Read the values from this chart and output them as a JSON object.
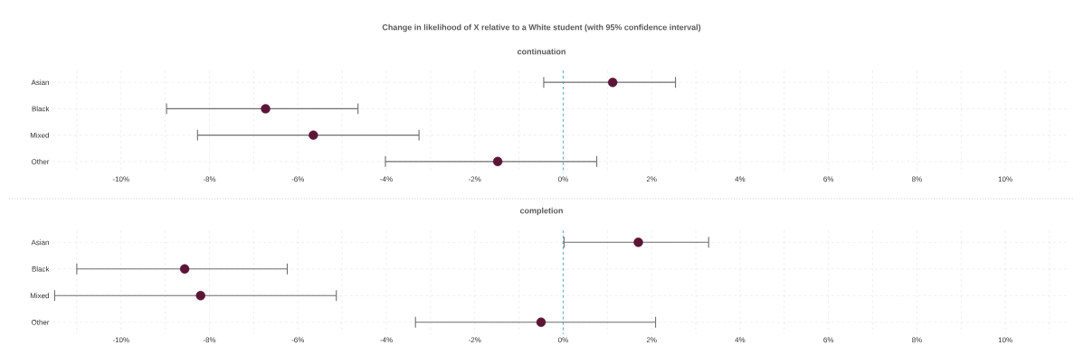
{
  "chart_data": [
    {
      "type": "scatter",
      "title": "Change in likelihood of X relative to a White student (with 95% confidence interval)",
      "subtitle": "continuation",
      "categories": [
        "Asian",
        "Black",
        "Mixed",
        "Other"
      ],
      "series": [
        {
          "color": "#5c1538",
          "values": [
            1.12,
            -6.73,
            -5.65,
            -1.48
          ],
          "errors": [
            [
              -0.44,
              2.54
            ],
            [
              -8.97,
              -4.64
            ],
            [
              -8.27,
              -3.26
            ],
            [
              -4.02,
              0.76
            ]
          ]
        }
      ],
      "orientation": "horizontal",
      "xlim": [
        -11.55,
        11.45
      ],
      "xticks": [
        {
          "value": -11,
          "label": null
        },
        {
          "value": -10,
          "label": "-10%"
        },
        {
          "value": -9,
          "label": null
        },
        {
          "value": -8,
          "label": "-8%"
        },
        {
          "value": -7,
          "label": null
        },
        {
          "value": -6,
          "label": "-6%"
        },
        {
          "value": -5,
          "label": null
        },
        {
          "value": -4,
          "label": "-4%"
        },
        {
          "value": -3,
          "label": null
        },
        {
          "value": -2,
          "label": "-2%"
        },
        {
          "value": -1,
          "label": null
        },
        {
          "value": 0,
          "label": "0%"
        },
        {
          "value": 1,
          "label": null
        },
        {
          "value": 2,
          "label": "2%"
        },
        {
          "value": 3,
          "label": null
        },
        {
          "value": 4,
          "label": "4%"
        },
        {
          "value": 5,
          "label": null
        },
        {
          "value": 6,
          "label": "6%"
        },
        {
          "value": 7,
          "label": null
        },
        {
          "value": 8,
          "label": "8%"
        },
        {
          "value": 9,
          "label": null
        },
        {
          "value": 10,
          "label": "10%"
        },
        {
          "value": 11,
          "label": null
        }
      ],
      "ref_lines": [
        {
          "axis": "x",
          "value": 0,
          "color": "#3aa0b0",
          "line_style": "dashed"
        }
      ],
      "grid": true,
      "marker": "circle"
    },
    {
      "type": "scatter",
      "subtitle": "completion",
      "categories": [
        "Asian",
        "Black",
        "Mixed",
        "Other"
      ],
      "series": [
        {
          "color": "#5c1538",
          "values": [
            1.7,
            -8.56,
            -8.2,
            -0.5
          ],
          "errors": [
            [
              0.02,
              3.29
            ],
            [
              -11.0,
              -6.24
            ],
            [
              -11.5,
              -5.13
            ],
            [
              -3.34,
              2.09
            ]
          ]
        }
      ],
      "orientation": "horizontal",
      "xlim": [
        -11.55,
        11.45
      ],
      "xticks": [
        {
          "value": -11,
          "label": null
        },
        {
          "value": -10,
          "label": "-10%"
        },
        {
          "value": -9,
          "label": null
        },
        {
          "value": -8,
          "label": "-8%"
        },
        {
          "value": -7,
          "label": null
        },
        {
          "value": -6,
          "label": "-6%"
        },
        {
          "value": -5,
          "label": null
        },
        {
          "value": -4,
          "label": "-4%"
        },
        {
          "value": -3,
          "label": null
        },
        {
          "value": -2,
          "label": "-2%"
        },
        {
          "value": -1,
          "label": null
        },
        {
          "value": 0,
          "label": "0%"
        },
        {
          "value": 1,
          "label": null
        },
        {
          "value": 2,
          "label": "2%"
        },
        {
          "value": 3,
          "label": null
        },
        {
          "value": 4,
          "label": "4%"
        },
        {
          "value": 5,
          "label": null
        },
        {
          "value": 6,
          "label": "6%"
        },
        {
          "value": 7,
          "label": null
        },
        {
          "value": 8,
          "label": "8%"
        },
        {
          "value": 9,
          "label": null
        },
        {
          "value": 10,
          "label": "10%"
        },
        {
          "value": 11,
          "label": null
        }
      ],
      "ref_lines": [
        {
          "axis": "x",
          "value": 0,
          "color": "#3aa0b0",
          "line_style": "dashed"
        }
      ],
      "grid": true,
      "marker": "circle"
    }
  ]
}
